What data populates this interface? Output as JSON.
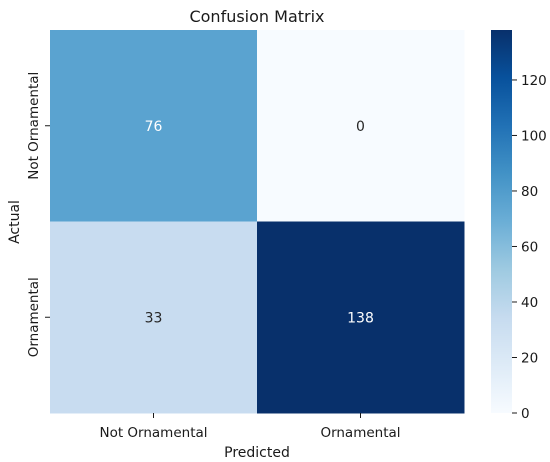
{
  "chart_data": {
    "type": "heatmap",
    "title": "Confusion Matrix",
    "xlabel": "Predicted",
    "ylabel": "Actual",
    "x_categories": [
      "Not Ornamental",
      "Ornamental"
    ],
    "y_categories": [
      "Not Ornamental",
      "Ornamental"
    ],
    "values": [
      [
        76,
        0
      ],
      [
        33,
        138
      ]
    ],
    "colormap": "Blues",
    "vmin": 0,
    "vmax": 138,
    "colorbar_ticks": [
      "0",
      "20",
      "40",
      "60",
      "80",
      "100",
      "120"
    ],
    "colorbar_tick_values": [
      0,
      20,
      40,
      60,
      80,
      100,
      120
    ],
    "colors": {
      "low": "#f7fbff",
      "high": "#08306b",
      "text_dark": "#262626",
      "text_light": "#ffffff"
    }
  }
}
